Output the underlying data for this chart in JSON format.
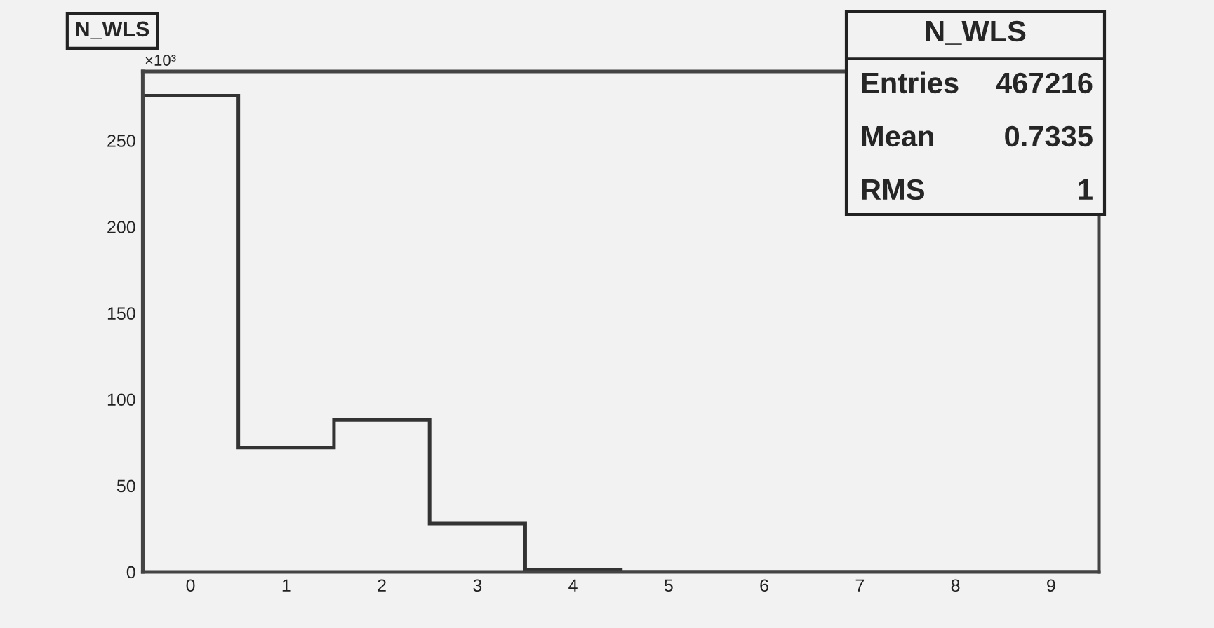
{
  "chart_data": {
    "type": "histogram",
    "title": "N_WLS",
    "bins": [
      -0.5,
      0.5,
      1.5,
      2.5,
      3.5,
      4.5,
      5.5,
      6.5,
      7.5,
      8.5,
      9.5
    ],
    "values": [
      276,
      72,
      88,
      28,
      1,
      0,
      0,
      0,
      0,
      0
    ],
    "color": "#333333",
    "xlim": [
      -0.5,
      9.5
    ],
    "xticks": [
      0,
      1,
      2,
      3,
      4,
      5,
      6,
      7,
      8,
      9
    ],
    "ylim": [
      0,
      290
    ],
    "yticks": [
      0,
      50,
      100,
      150,
      200,
      250
    ],
    "grid": false,
    "annotations": [
      "×10³",
      "N_WLS",
      "Entries",
      "467216",
      "Mean",
      "0.7335",
      "RMS",
      "1"
    ]
  }
}
